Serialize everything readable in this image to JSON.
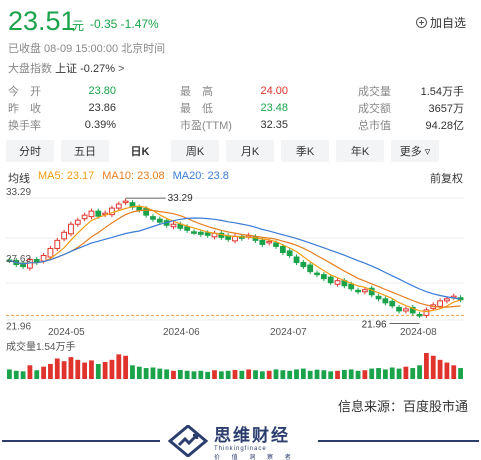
{
  "quote": {
    "price": "23.51",
    "unit": "元",
    "change": "-0.35 -1.47%",
    "watch_label": "加自选",
    "status": "已收盘 08-09 15:00:00 北京时间",
    "index_label": "大盘指数",
    "index_name": "上证",
    "index_change": "-0.27%",
    "index_arrow": ">"
  },
  "stats": {
    "col1": [
      {
        "label": "今　开",
        "value": "23.80",
        "color": "green"
      },
      {
        "label": "昨　收",
        "value": "23.86",
        "color": "neutral"
      },
      {
        "label": "换手率",
        "value": "0.39%",
        "color": "neutral"
      }
    ],
    "col2": [
      {
        "label": "最　高",
        "value": "24.00",
        "color": "red"
      },
      {
        "label": "最　低",
        "value": "23.48",
        "color": "green"
      },
      {
        "label": "市盈(TTM)",
        "value": "32.35",
        "color": "neutral"
      }
    ],
    "col3": [
      {
        "label": "成交量",
        "value": "1.54万手",
        "color": "neutral"
      },
      {
        "label": "成交额",
        "value": "3657万",
        "color": "neutral"
      },
      {
        "label": "总市值",
        "value": "94.28亿",
        "color": "neutral"
      }
    ]
  },
  "tabs": [
    "分时",
    "五日",
    "日K",
    "周K",
    "月K",
    "季K",
    "年K",
    "更多"
  ],
  "active_tab": "日K",
  "ma": {
    "label": "均线",
    "ma5": "MA5: 23.17",
    "ma10": "MA10: 23.08",
    "ma20": "MA20: 23.8",
    "adjust": "前复权"
  },
  "chart_data": {
    "type": "candlestick",
    "x_labels": [
      "2024-05",
      "2024-06",
      "2024-07",
      "2024-08"
    ],
    "y_labels_left": [
      "33.29",
      "27.63",
      "21.96"
    ],
    "max_annotation": "33.29",
    "min_annotation": "21.96",
    "volume_label": "成交量1.54万手",
    "colors": {
      "up": "#e0332d",
      "down": "#1aa34a",
      "ma5": "#f39c12",
      "ma10": "#e67e22",
      "ma20": "#3a7bd5"
    },
    "close": [
      27.4,
      27.0,
      26.8,
      27.5,
      27.2,
      27.9,
      28.6,
      29.4,
      30.2,
      31.0,
      31.4,
      31.9,
      32.3,
      31.8,
      32.1,
      32.6,
      33.0,
      33.29,
      32.7,
      32.4,
      31.9,
      31.5,
      31.2,
      30.9,
      31.0,
      30.6,
      30.4,
      30.2,
      30.0,
      29.9,
      30.1,
      29.7,
      29.5,
      29.8,
      29.6,
      29.9,
      29.4,
      29.0,
      29.3,
      28.8,
      28.2,
      27.9,
      27.2,
      26.8,
      26.3,
      26.0,
      25.6,
      25.2,
      25.4,
      24.9,
      24.6,
      24.3,
      24.5,
      24.0,
      23.6,
      23.2,
      22.9,
      22.4,
      22.6,
      22.2,
      21.96,
      22.5,
      23.0,
      23.4,
      23.6,
      23.86,
      23.51
    ],
    "volume": [
      0.35,
      0.3,
      0.28,
      0.5,
      0.32,
      0.45,
      0.55,
      0.75,
      0.65,
      0.8,
      0.7,
      0.6,
      0.68,
      0.55,
      0.62,
      0.7,
      0.9,
      0.85,
      0.5,
      0.45,
      0.4,
      0.42,
      0.38,
      0.35,
      0.3,
      0.33,
      0.3,
      0.28,
      0.3,
      0.26,
      0.32,
      0.28,
      0.3,
      0.33,
      0.3,
      0.35,
      0.32,
      0.28,
      0.3,
      0.35,
      0.32,
      0.3,
      0.35,
      0.38,
      0.3,
      0.34,
      0.32,
      0.28,
      0.3,
      0.33,
      0.35,
      0.3,
      0.32,
      0.38,
      0.4,
      0.35,
      0.42,
      0.38,
      0.45,
      0.4,
      0.5,
      0.95,
      0.85,
      0.7,
      0.6,
      0.5,
      0.4
    ]
  },
  "footer": {
    "source": "信息来源：百度股市通",
    "brand_cn": "思维财经",
    "brand_en": "Thinkingfinace",
    "brand_sub": "价 值 洞 察 者"
  }
}
